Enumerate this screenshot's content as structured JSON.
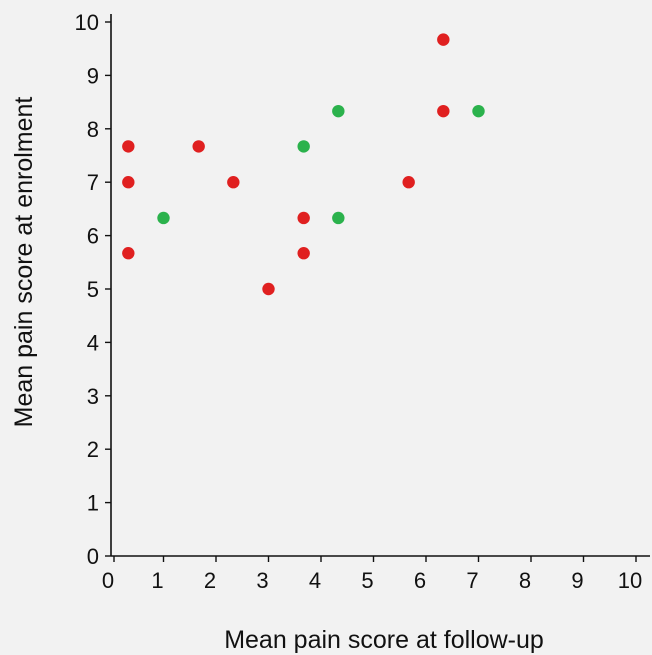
{
  "chart_data": {
    "type": "scatter",
    "xlabel": "Mean pain score at follow-up",
    "ylabel": "Mean pain score at enrolment",
    "xlim": [
      0,
      10
    ],
    "ylim": [
      0,
      10
    ],
    "xticks": [
      "0",
      "1",
      "2",
      "3",
      "4",
      "5",
      "6",
      "7",
      "8",
      "9",
      "10"
    ],
    "yticks": [
      "0",
      "1",
      "2",
      "3",
      "4",
      "5",
      "6",
      "7",
      "8",
      "9",
      "10"
    ],
    "grid": false,
    "legend": "none",
    "colors": {
      "red": "#e02020",
      "green": "#2bb24c"
    },
    "series": [
      {
        "color": "#e02020",
        "points": [
          {
            "x": 0.33,
            "y": 7.67
          },
          {
            "x": 0.33,
            "y": 7.0
          },
          {
            "x": 0.33,
            "y": 5.67
          },
          {
            "x": 1.67,
            "y": 7.67
          },
          {
            "x": 2.33,
            "y": 7.0
          },
          {
            "x": 3.0,
            "y": 5.0
          },
          {
            "x": 3.67,
            "y": 6.33
          },
          {
            "x": 3.67,
            "y": 5.67
          },
          {
            "x": 5.67,
            "y": 7.0
          },
          {
            "x": 6.33,
            "y": 9.67
          },
          {
            "x": 6.33,
            "y": 8.33
          }
        ]
      },
      {
        "color": "#2bb24c",
        "points": [
          {
            "x": 1.0,
            "y": 6.33
          },
          {
            "x": 3.67,
            "y": 7.67
          },
          {
            "x": 4.33,
            "y": 8.33
          },
          {
            "x": 4.33,
            "y": 6.33
          },
          {
            "x": 7.0,
            "y": 8.33
          }
        ]
      }
    ]
  }
}
